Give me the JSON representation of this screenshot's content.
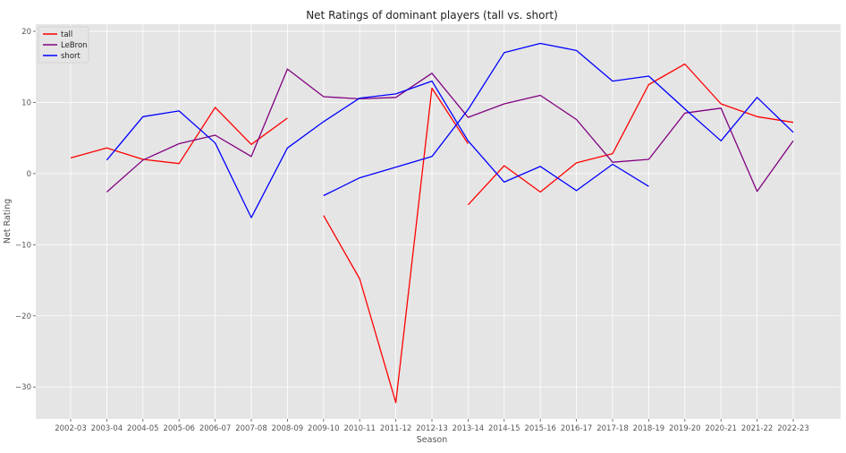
{
  "chart_data": {
    "type": "line",
    "title": "Net Ratings of dominant players (tall vs. short)",
    "xlabel": "Season",
    "ylabel": "Net Rating",
    "categories": [
      "2002-03",
      "2003-04",
      "2004-05",
      "2005-06",
      "2006-07",
      "2007-08",
      "2008-09",
      "2009-10",
      "2010-11",
      "2011-12",
      "2012-13",
      "2013-14",
      "2014-15",
      "2015-16",
      "2016-17",
      "2017-18",
      "2018-19",
      "2019-20",
      "2020-21",
      "2021-22",
      "2022-23"
    ],
    "y_ticks": [
      20,
      10,
      0,
      -10,
      -20,
      -30
    ],
    "y_tick_labels": [
      "20",
      "10",
      "0",
      "−10",
      "−20",
      "−30"
    ],
    "ylim": [
      -34.5,
      21
    ],
    "grid": true,
    "legend_position": "top-left",
    "series": [
      {
        "name": "tall",
        "color": "#ff0000",
        "segments": [
          [
            [
              0,
              2.2
            ],
            [
              1,
              3.6
            ],
            [
              2,
              2.0
            ],
            [
              3,
              1.4
            ],
            [
              4,
              9.3
            ],
            [
              5,
              4.1
            ],
            [
              6,
              7.8
            ]
          ],
          [
            [
              7,
              -5.9
            ],
            [
              8,
              -14.8
            ],
            [
              9,
              -32.2
            ],
            [
              10,
              12.0
            ],
            [
              11,
              4.2
            ]
          ],
          [
            [
              11,
              -4.4
            ],
            [
              12,
              1.1
            ],
            [
              13,
              -2.6
            ],
            [
              14,
              1.5
            ],
            [
              15,
              2.8
            ],
            [
              16,
              12.5
            ],
            [
              17,
              15.4
            ],
            [
              18,
              9.8
            ],
            [
              19,
              8.0
            ],
            [
              20,
              7.2
            ]
          ]
        ]
      },
      {
        "name": "LeBron",
        "color": "#800080",
        "segments": [
          [
            [
              1,
              -2.6
            ],
            [
              2,
              1.9
            ],
            [
              3,
              4.2
            ],
            [
              4,
              5.4
            ],
            [
              5,
              2.4
            ],
            [
              6,
              14.7
            ],
            [
              7,
              10.8
            ],
            [
              8,
              10.5
            ],
            [
              9,
              10.7
            ],
            [
              10,
              14.1
            ],
            [
              11,
              7.9
            ],
            [
              12,
              9.8
            ],
            [
              13,
              11.0
            ],
            [
              14,
              7.6
            ],
            [
              15,
              1.6
            ],
            [
              16,
              2.0
            ],
            [
              17,
              8.5
            ],
            [
              18,
              9.2
            ],
            [
              19,
              -2.5
            ],
            [
              20,
              4.6
            ]
          ]
        ]
      },
      {
        "name": "short",
        "color": "#0000ff",
        "segments": [
          [
            [
              1,
              1.9
            ],
            [
              2,
              8.0
            ],
            [
              3,
              8.8
            ],
            [
              4,
              4.3
            ],
            [
              5,
              -6.2
            ],
            [
              6,
              3.6
            ],
            [
              7,
              7.3
            ],
            [
              8,
              10.6
            ],
            [
              9,
              11.2
            ],
            [
              10,
              13.0
            ],
            [
              11,
              4.6
            ],
            [
              12,
              -1.2
            ],
            [
              13,
              1.0
            ],
            [
              14,
              -2.4
            ],
            [
              15,
              1.3
            ],
            [
              16,
              -1.8
            ]
          ],
          [
            [
              7,
              -3.1
            ],
            [
              8,
              -0.6
            ],
            [
              9,
              0.9
            ],
            [
              10,
              2.4
            ],
            [
              11,
              9.0
            ],
            [
              12,
              17.0
            ],
            [
              13,
              18.3
            ],
            [
              14,
              17.3
            ],
            [
              15,
              13.0
            ],
            [
              16,
              13.7
            ],
            [
              17,
              9.1
            ],
            [
              18,
              4.6
            ],
            [
              19,
              10.7
            ],
            [
              20,
              5.8
            ]
          ]
        ]
      }
    ]
  }
}
